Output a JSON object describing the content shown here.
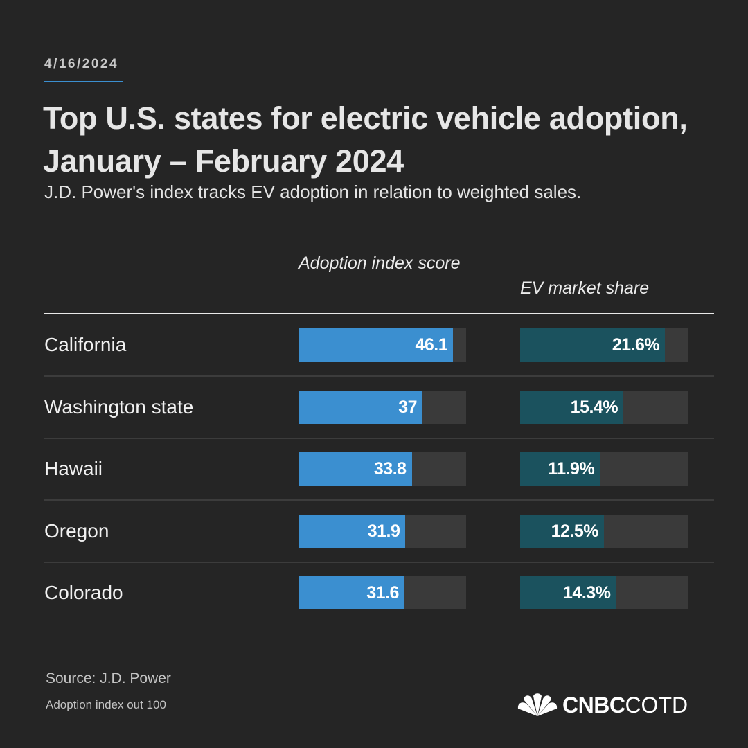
{
  "header": {
    "date": "4/16/2024",
    "title": "Top U.S. states for electric vehicle adoption, January – February 2024",
    "subtitle": "J.D. Power's index tracks EV adoption in relation to weighted sales."
  },
  "chart_data": {
    "type": "bar",
    "orientation": "horizontal",
    "categories": [
      "California",
      "Washington state",
      "Hawaii",
      "Oregon",
      "Colorado"
    ],
    "series": [
      {
        "name": "Adoption index score",
        "values": [
          46.1,
          37,
          33.8,
          31.9,
          31.6
        ],
        "labels": [
          "46.1",
          "37",
          "33.8",
          "31.9",
          "31.6"
        ],
        "max": 50,
        "color": "#3b8fd0"
      },
      {
        "name": "EV market share",
        "values": [
          21.6,
          15.4,
          11.9,
          12.5,
          14.3
        ],
        "labels": [
          "21.6%",
          "15.4%",
          "11.9%",
          "12.5%",
          "14.3%"
        ],
        "max": 25,
        "color": "#1b525e"
      }
    ],
    "track_color": "#3a3a3a"
  },
  "footer": {
    "source": "Source: J.D. Power",
    "note": "Adoption index out 100",
    "brand_bold": "CNBC",
    "brand_light": "COTD"
  },
  "colors": {
    "background": "#252525",
    "accent": "#3b8fd0",
    "peacock": [
      "#f7a800",
      "#e8301c",
      "#7b3f98",
      "#0089cf",
      "#00a650",
      "#ffcc00"
    ]
  }
}
